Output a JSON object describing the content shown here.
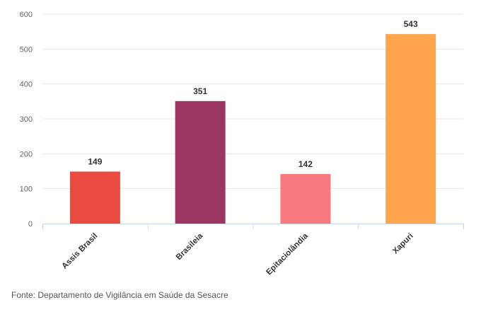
{
  "chart_data": {
    "type": "bar",
    "categories": [
      "Assis Brasil",
      "Brasileia",
      "Epitaciolândia",
      "Xapuri"
    ],
    "values": [
      149,
      351,
      142,
      543
    ],
    "colors": [
      "#ea4a3f",
      "#9b3562",
      "#f87a80",
      "#fea54e"
    ],
    "ylim": [
      0,
      600
    ],
    "yticks": [
      0,
      100,
      200,
      300,
      400,
      500,
      600
    ],
    "ytick_labels": [
      "0",
      "100",
      "200",
      "300",
      "400",
      "500",
      "600"
    ],
    "grid": true,
    "legend": "none",
    "title": "",
    "xlabel": "",
    "ylabel": ""
  },
  "source": "Fonte: Departamento de Vigilância em Saúde da Sesacre"
}
